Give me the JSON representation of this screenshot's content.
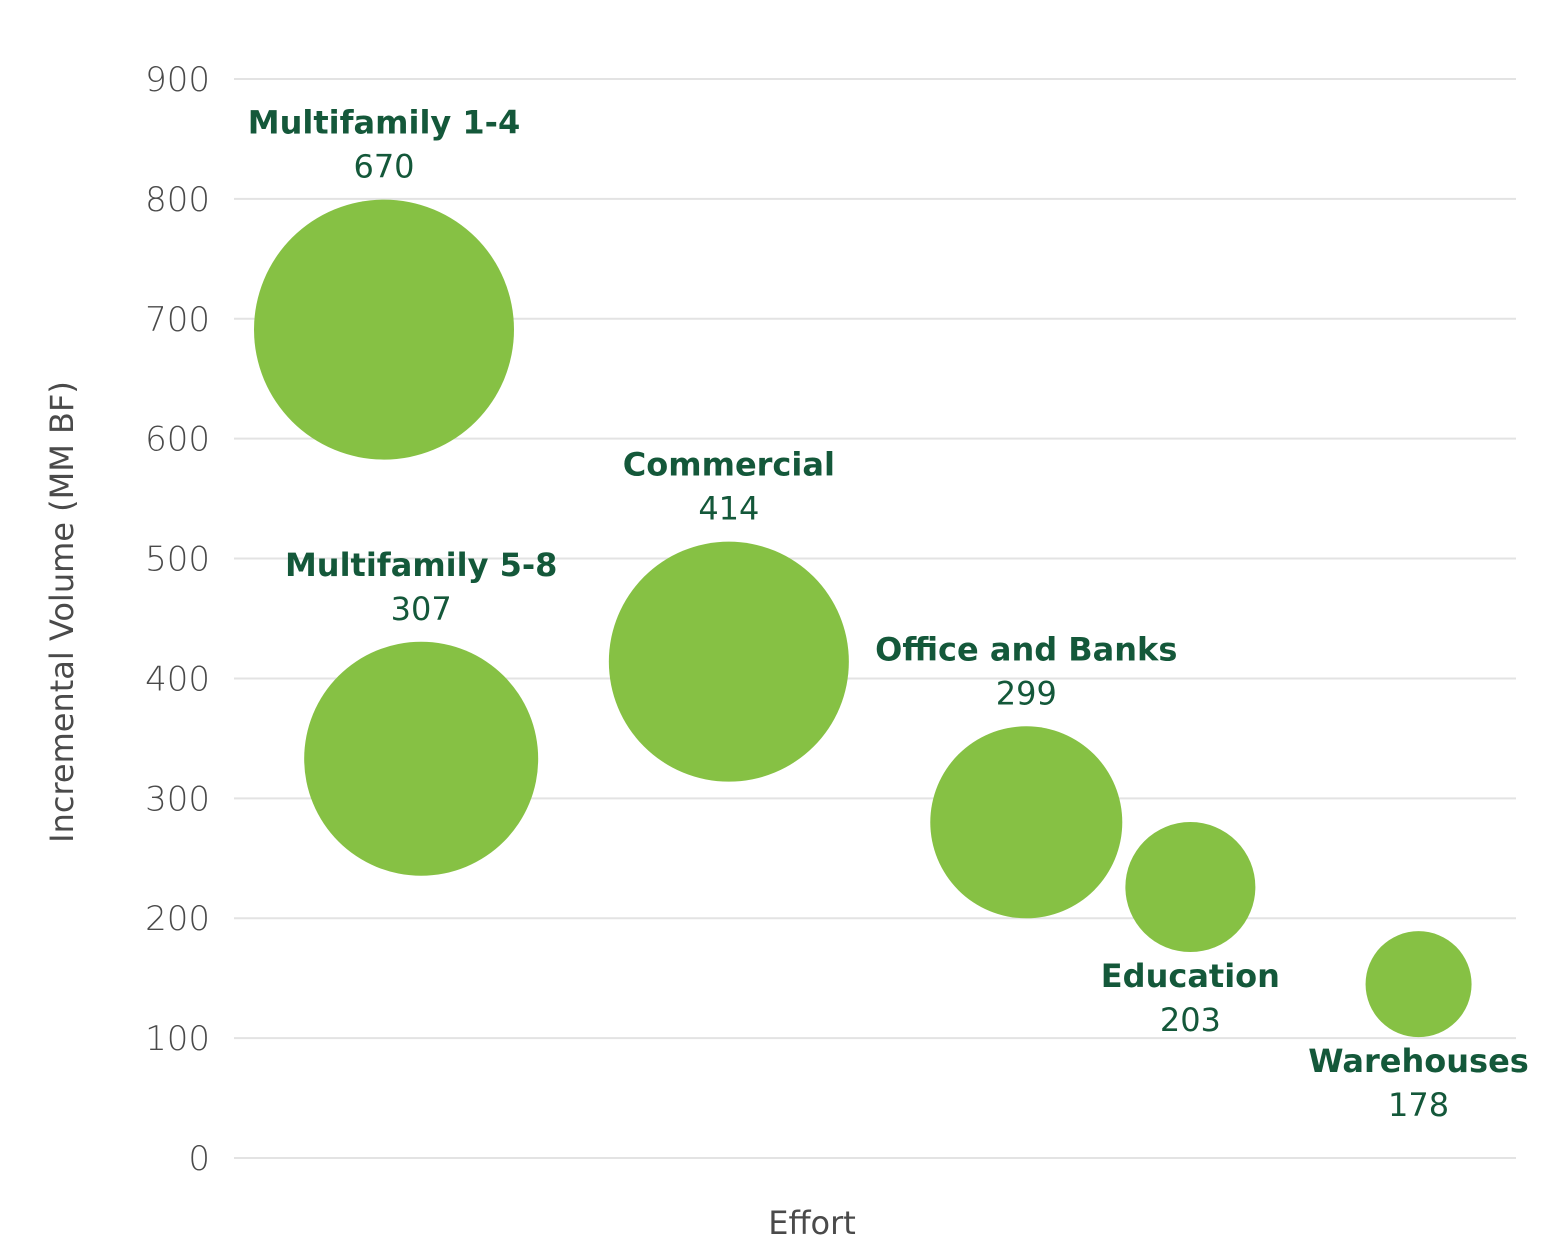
{
  "chart_data": {
    "type": "scatter",
    "subtype": "bubble",
    "title": "",
    "xlabel": "Effort",
    "ylabel": "Incremental Volume (MM BF)",
    "xlim": [
      0,
      100
    ],
    "x_ticks_shown": false,
    "ylim": [
      0,
      900
    ],
    "yticks": [
      0,
      100,
      200,
      300,
      400,
      500,
      600,
      700,
      800,
      900
    ],
    "grid": "horizontal",
    "legend": "none",
    "colors": {
      "bubble": "#86c144",
      "label": "#14583a",
      "grid": "#e3e3e3",
      "tick": "#4a4a4a"
    },
    "points": [
      {
        "name": "Multifamily 1-4",
        "size_label": "670",
        "x": 11.7,
        "y": 691,
        "label_position": "above"
      },
      {
        "name": "Multifamily 5-8",
        "size_label": "307",
        "x": 14.6,
        "y": 333,
        "label_position": "above"
      },
      {
        "name": "Commercial",
        "size_label": "414",
        "x": 38.6,
        "y": 414,
        "label_position": "above"
      },
      {
        "name": "Office and Banks",
        "size_label": "299",
        "x": 61.8,
        "y": 280,
        "label_position": "above"
      },
      {
        "name": "Education",
        "size_label": "203",
        "x": 74.6,
        "y": 226,
        "label_position": "below"
      },
      {
        "name": "Warehouses",
        "size_label": "178",
        "x": 92.4,
        "y": 145,
        "label_position": "below"
      }
    ]
  }
}
